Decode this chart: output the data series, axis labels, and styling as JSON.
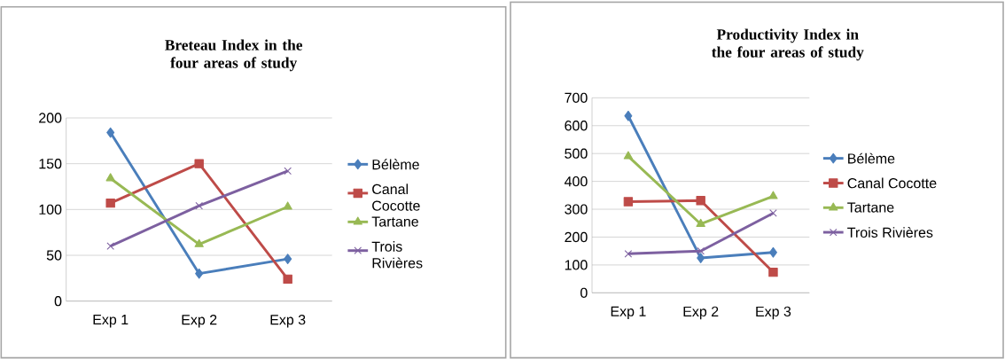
{
  "chart_data": [
    {
      "type": "line",
      "title": "Breteau Index in the four areas of study",
      "categories": [
        "Exp 1",
        "Exp 2",
        "Exp 3"
      ],
      "ylim": [
        0,
        200
      ],
      "yticks": [
        0,
        50,
        100,
        150,
        200
      ],
      "grid": "y",
      "legend": "right",
      "series": [
        {
          "name": "Bélème",
          "color": "#4a7ebb",
          "marker": "diamond",
          "values": [
            184,
            30,
            46
          ]
        },
        {
          "name": "Canal Cocotte",
          "color": "#be4b48",
          "marker": "square",
          "values": [
            107,
            150,
            24
          ]
        },
        {
          "name": "Tartane",
          "color": "#98b954",
          "marker": "triangle",
          "values": [
            134,
            62,
            103
          ]
        },
        {
          "name": "Trois Rivières",
          "color": "#7d60a0",
          "marker": "cross",
          "values": [
            60,
            104,
            142
          ]
        }
      ]
    },
    {
      "type": "line",
      "title": "Productivity Index in the four areas of study",
      "categories": [
        "Exp 1",
        "Exp 2",
        "Exp 3"
      ],
      "ylim": [
        0,
        700
      ],
      "yticks": [
        0,
        100,
        200,
        300,
        400,
        500,
        600,
        700
      ],
      "grid": "y",
      "legend": "right",
      "series": [
        {
          "name": "Bélème",
          "color": "#4a7ebb",
          "marker": "diamond",
          "values": [
            635,
            125,
            145
          ]
        },
        {
          "name": "Canal Cocotte",
          "color": "#be4b48",
          "marker": "square",
          "values": [
            327,
            331,
            74
          ]
        },
        {
          "name": "Tartane",
          "color": "#98b954",
          "marker": "triangle",
          "values": [
            490,
            247,
            347
          ]
        },
        {
          "name": "Trois Rivières",
          "color": "#7d60a0",
          "marker": "cross",
          "values": [
            140,
            150,
            286
          ]
        }
      ]
    }
  ]
}
